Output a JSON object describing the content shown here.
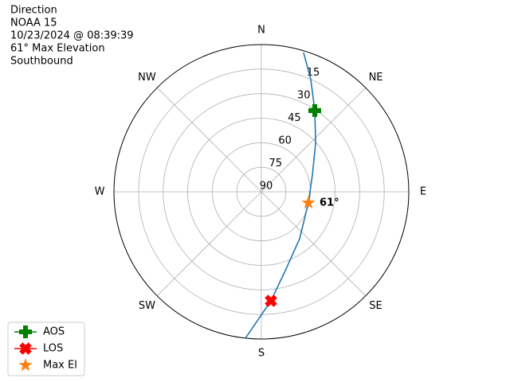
{
  "chart_data": {
    "type": "polar",
    "title_lines": [
      "Direction",
      "NOAA 15",
      "10/23/2024 @ 08:39:39",
      "61° Max Elevation",
      "Southbound"
    ],
    "theta_ticks": [
      {
        "value": 0,
        "label": "N"
      },
      {
        "value": 45,
        "label": "NE"
      },
      {
        "value": 90,
        "label": "E"
      },
      {
        "value": 135,
        "label": "SE"
      },
      {
        "value": 180,
        "label": "S"
      },
      {
        "value": 225,
        "label": "SW"
      },
      {
        "value": 270,
        "label": "W"
      },
      {
        "value": 315,
        "label": "NW"
      }
    ],
    "rlim": [
      90,
      0
    ],
    "rticks": [
      15,
      30,
      45,
      60,
      75,
      90
    ],
    "grid": true,
    "track": {
      "color": "#1f77b4",
      "azimuth": [
        16.8,
        23.7,
        33.3,
        48.1,
        71.8,
        103.3,
        140.9,
        163.1,
        175,
        186.2
      ],
      "elevation": [
        1,
        15,
        30.6,
        45.5,
        57.2,
        60.5,
        53,
        39.7,
        23.1,
        0
      ]
    },
    "series": [
      {
        "name": "AOS",
        "color": "#008000",
        "marker": "plus",
        "azimuth": [
          33.3
        ],
        "elevation": [
          30.6
        ]
      },
      {
        "name": "LOS",
        "color": "#ff0000",
        "marker": "x",
        "azimuth": [
          175
        ],
        "elevation": [
          23.1
        ]
      },
      {
        "name": "Max El",
        "color": "#ff7f0e",
        "marker": "star",
        "azimuth": [
          103.3
        ],
        "elevation": [
          60.5
        ]
      }
    ],
    "annotation": "61°",
    "legend": "lower left"
  }
}
